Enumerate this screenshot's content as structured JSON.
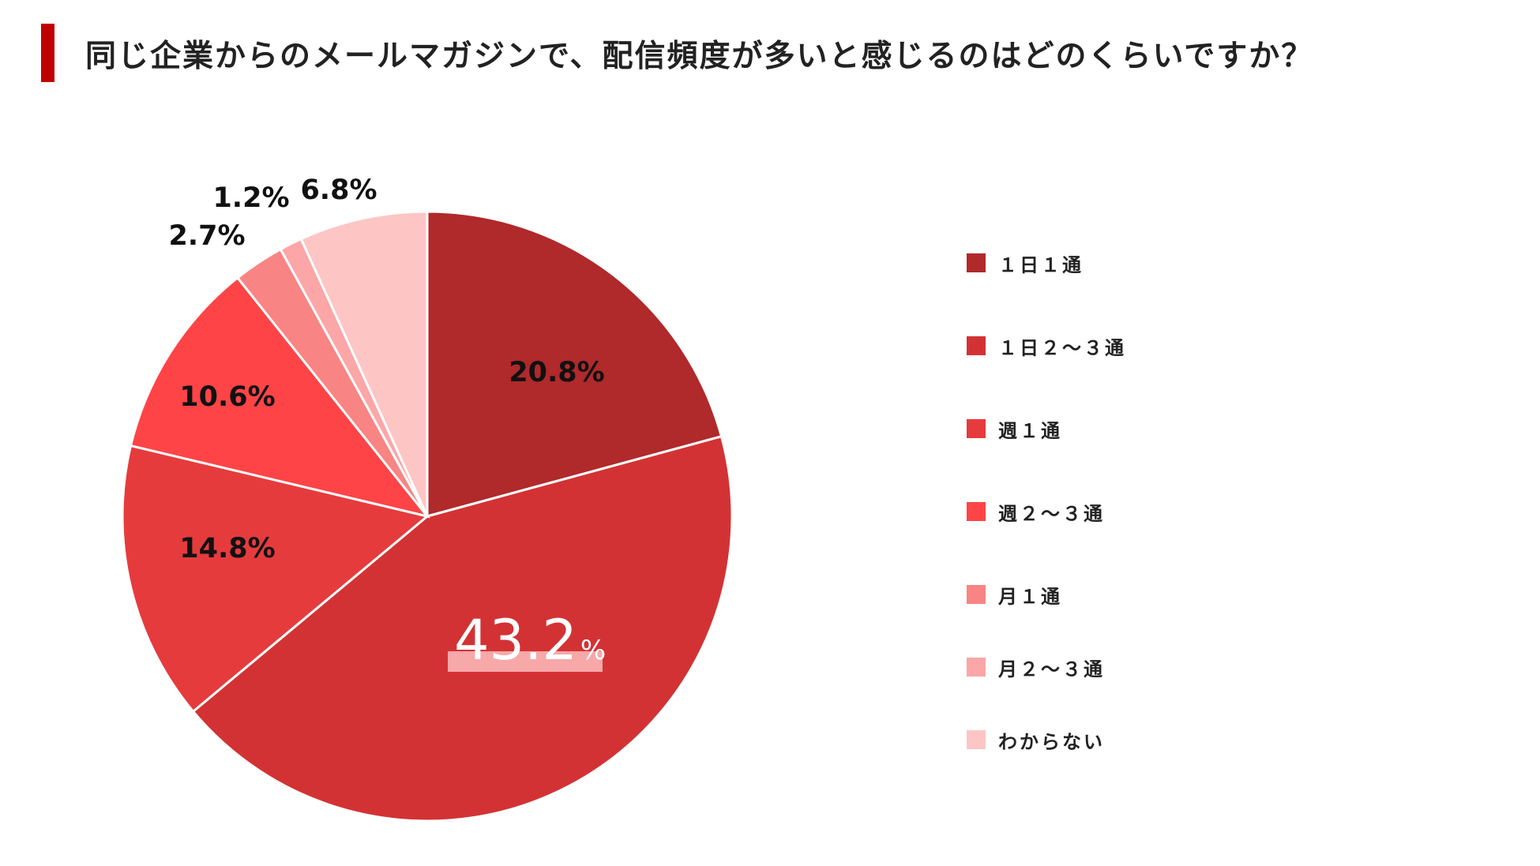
{
  "title": "同じ企業からのメールマガジンで、配信頻度が多いと感じるのはどのくらいですか？",
  "colors": {
    "accent": "#c00000"
  },
  "chart_data": {
    "type": "pie",
    "title": "同じ企業からのメールマガジンで、配信頻度が多いと感じるのはどのくらいですか？",
    "slices": [
      {
        "label": "１日１通",
        "value": 20.8,
        "display": "20.8%",
        "color": "#b0292b"
      },
      {
        "label": "１日２～３通",
        "value": 43.2,
        "display_number": "43.2",
        "display_unit": "%",
        "color": "#d33234"
      },
      {
        "label": "週１通",
        "value": 14.8,
        "display": "14.8%",
        "color": "#e63b3d"
      },
      {
        "label": "週２～３通",
        "value": 10.6,
        "display": "10.6%",
        "color": "#fe4446"
      },
      {
        "label": "月１通",
        "value": 2.7,
        "display": "2.7%",
        "color": "#f98484"
      },
      {
        "label": "月２～３通",
        "value": 1.2,
        "display": "1.2%",
        "color": "#fca6a7"
      },
      {
        "label": "わからない",
        "value": 6.8,
        "display": "6.8%",
        "color": "#fec5c5"
      }
    ],
    "start_angle": "12 o'clock",
    "direction": "clockwise",
    "legend_position": "right"
  }
}
